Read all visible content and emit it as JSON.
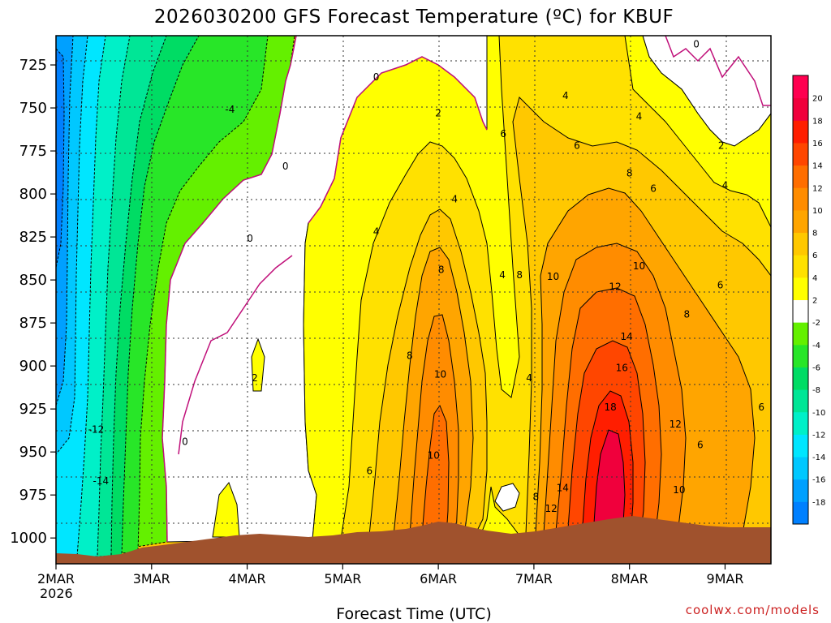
{
  "chart_data": {
    "type": "heatmap",
    "title": "2026030200 GFS Forecast Temperature (ºC) for KBUF",
    "xlabel": "Forecast Time (UTC)",
    "ylabel": "",
    "x_ticks": [
      "2MAR",
      "3MAR",
      "4MAR",
      "5MAR",
      "6MAR",
      "7MAR",
      "8MAR",
      "9MAR"
    ],
    "x_tick_year": "2026",
    "x_range_days": [
      2.0,
      9.48
    ],
    "y_ticks": [
      725,
      750,
      775,
      800,
      825,
      850,
      875,
      900,
      925,
      950,
      975,
      1000
    ],
    "y_range_hpa": [
      708,
      1015
    ],
    "grid": true,
    "colorbar": {
      "tick_labels": [
        "20",
        "18",
        "16",
        "14",
        "12",
        "10",
        "8",
        "6",
        "4",
        "2",
        "-2",
        "-4",
        "-6",
        "-8",
        "-10",
        "-12",
        "-14",
        "-16",
        "-18"
      ],
      "colors": [
        "#0080ff",
        "#00a0ff",
        "#00c8ff",
        "#00e6ff",
        "#00f0c8",
        "#00e696",
        "#00dc64",
        "#28e628",
        "#64f000",
        "#ffffff",
        "#ffff00",
        "#ffe100",
        "#ffc800",
        "#ffa500",
        "#ff8c00",
        "#ff6e00",
        "#ff4600",
        "#ff1e00",
        "#f0003c",
        "#ff0050"
      ]
    },
    "contour_labels": [
      {
        "time": 2.42,
        "p": 937,
        "value": "-12"
      },
      {
        "time": 2.47,
        "p": 967,
        "value": "-14"
      },
      {
        "time": 3.82,
        "p": 751,
        "value": "-4"
      },
      {
        "time": 4.4,
        "p": 784,
        "value": "0"
      },
      {
        "time": 4.03,
        "p": 826,
        "value": "0"
      },
      {
        "time": 3.35,
        "p": 944,
        "value": "0"
      },
      {
        "time": 5.35,
        "p": 732,
        "value": "0"
      },
      {
        "time": 8.7,
        "p": 713,
        "value": "0"
      },
      {
        "time": 4.08,
        "p": 907,
        "value": "2"
      },
      {
        "time": 6.0,
        "p": 753,
        "value": "2"
      },
      {
        "time": 8.96,
        "p": 772,
        "value": "2"
      },
      {
        "time": 5.35,
        "p": 822,
        "value": "4"
      },
      {
        "time": 6.17,
        "p": 803,
        "value": "4"
      },
      {
        "time": 6.67,
        "p": 847,
        "value": "4"
      },
      {
        "time": 6.95,
        "p": 907,
        "value": "4"
      },
      {
        "time": 7.33,
        "p": 743,
        "value": "4"
      },
      {
        "time": 8.1,
        "p": 755,
        "value": "4"
      },
      {
        "time": 9.0,
        "p": 795,
        "value": "4"
      },
      {
        "time": 5.28,
        "p": 961,
        "value": "6"
      },
      {
        "time": 6.68,
        "p": 765,
        "value": "6"
      },
      {
        "time": 7.45,
        "p": 772,
        "value": "6"
      },
      {
        "time": 8.25,
        "p": 797,
        "value": "6"
      },
      {
        "time": 8.95,
        "p": 853,
        "value": "6"
      },
      {
        "time": 8.74,
        "p": 946,
        "value": "6"
      },
      {
        "time": 9.38,
        "p": 924,
        "value": "6"
      },
      {
        "time": 5.7,
        "p": 894,
        "value": "8"
      },
      {
        "time": 6.03,
        "p": 844,
        "value": "8"
      },
      {
        "time": 6.85,
        "p": 847,
        "value": "8"
      },
      {
        "time": 7.02,
        "p": 976,
        "value": "8"
      },
      {
        "time": 8.0,
        "p": 788,
        "value": "8"
      },
      {
        "time": 8.6,
        "p": 870,
        "value": "8"
      },
      {
        "time": 6.02,
        "p": 905,
        "value": "10"
      },
      {
        "time": 5.95,
        "p": 952,
        "value": "10"
      },
      {
        "time": 7.2,
        "p": 848,
        "value": "10"
      },
      {
        "time": 8.1,
        "p": 842,
        "value": "10"
      },
      {
        "time": 8.52,
        "p": 972,
        "value": "10"
      },
      {
        "time": 7.85,
        "p": 854,
        "value": "12"
      },
      {
        "time": 7.18,
        "p": 983,
        "value": "12"
      },
      {
        "time": 8.48,
        "p": 934,
        "value": "12"
      },
      {
        "time": 7.97,
        "p": 883,
        "value": "14"
      },
      {
        "time": 7.3,
        "p": 971,
        "value": "14"
      },
      {
        "time": 7.92,
        "p": 901,
        "value": "16"
      },
      {
        "time": 7.8,
        "p": 924,
        "value": "18"
      }
    ]
  },
  "credit": "coolwx.com/models"
}
